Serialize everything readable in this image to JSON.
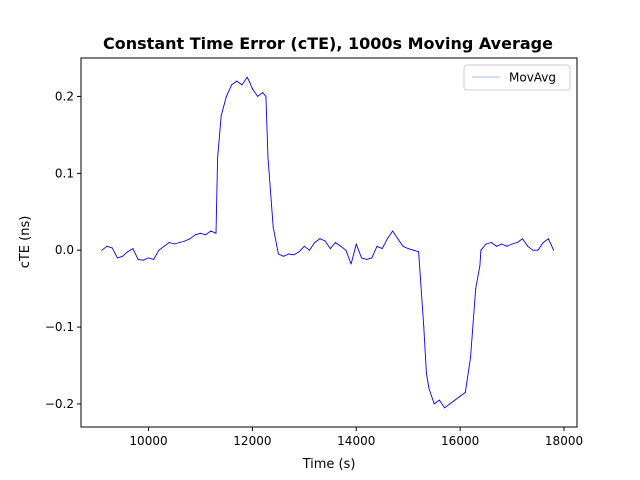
{
  "chart_data": {
    "type": "line",
    "title": "Constant Time Error (cTE), 1000s Moving Average",
    "xlabel": "Time (s)",
    "ylabel": "cTE (ns)",
    "xlim": [
      8700,
      18250
    ],
    "ylim": [
      -0.23,
      0.25
    ],
    "xticks": [
      10000,
      12000,
      14000,
      16000,
      18000
    ],
    "xtick_labels": [
      "10000",
      "12000",
      "14000",
      "16000",
      "18000"
    ],
    "yticks": [
      -0.2,
      -0.1,
      0.0,
      0.1,
      0.2
    ],
    "ytick_labels": [
      "−0.2",
      "−0.1",
      "0.0",
      "0.1",
      "0.2"
    ],
    "grid": false,
    "legend_position": "top-right",
    "series": [
      {
        "name": "MovAvg",
        "color": "#0000ff",
        "legend_color": "#aab4f0",
        "x": [
          9100,
          9200,
          9300,
          9400,
          9500,
          9600,
          9700,
          9800,
          9900,
          10000,
          10100,
          10200,
          10300,
          10400,
          10500,
          10600,
          10700,
          10800,
          10900,
          11000,
          11100,
          11200,
          11300,
          11330,
          11400,
          11500,
          11600,
          11700,
          11800,
          11900,
          11950,
          12000,
          12100,
          12200,
          12260,
          12300,
          12400,
          12500,
          12600,
          12700,
          12800,
          12900,
          13000,
          13100,
          13200,
          13300,
          13400,
          13500,
          13600,
          13700,
          13800,
          13900,
          14000,
          14100,
          14200,
          14300,
          14400,
          14500,
          14600,
          14700,
          14800,
          14900,
          15000,
          15100,
          15200,
          15300,
          15350,
          15400,
          15500,
          15600,
          15700,
          15800,
          15900,
          16000,
          16100,
          16200,
          16300,
          16380,
          16400,
          16500,
          16600,
          16700,
          16800,
          16900,
          17000,
          17100,
          17200,
          17300,
          17400,
          17500,
          17600,
          17700,
          17800
        ],
        "y": [
          0.0,
          0.005,
          0.003,
          -0.01,
          -0.008,
          -0.002,
          0.002,
          -0.012,
          -0.013,
          -0.01,
          -0.012,
          0.0,
          0.005,
          0.01,
          0.008,
          0.01,
          0.012,
          0.015,
          0.02,
          0.022,
          0.02,
          0.025,
          0.022,
          0.12,
          0.175,
          0.2,
          0.215,
          0.22,
          0.215,
          0.225,
          0.218,
          0.21,
          0.2,
          0.205,
          0.2,
          0.12,
          0.03,
          -0.005,
          -0.008,
          -0.005,
          -0.006,
          -0.002,
          0.005,
          0.0,
          0.01,
          0.015,
          0.012,
          0.002,
          0.01,
          0.005,
          0.0,
          -0.018,
          0.008,
          -0.01,
          -0.012,
          -0.01,
          0.005,
          0.002,
          0.015,
          0.025,
          0.015,
          0.005,
          0.002,
          0.0,
          -0.002,
          -0.1,
          -0.16,
          -0.18,
          -0.2,
          -0.195,
          -0.205,
          -0.2,
          -0.195,
          -0.19,
          -0.185,
          -0.14,
          -0.05,
          -0.02,
          0.0,
          0.008,
          0.01,
          0.005,
          0.008,
          0.005,
          0.008,
          0.01,
          0.015,
          0.005,
          0.0,
          0.0,
          0.01,
          0.015,
          0.0
        ]
      }
    ]
  }
}
